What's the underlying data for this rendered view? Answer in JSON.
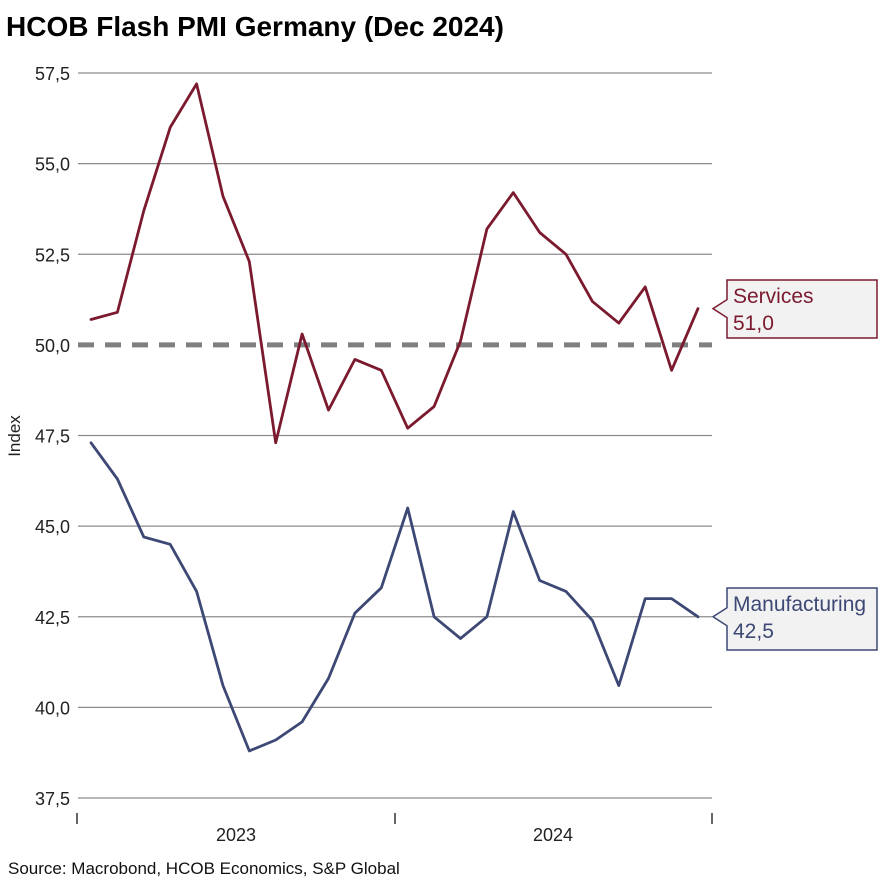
{
  "chart_data": {
    "type": "line",
    "title": "HCOB Flash PMI Germany (Dec 2024)",
    "ylabel": "Index",
    "xlabel": "",
    "ylim": [
      37.5,
      57.5
    ],
    "yticks": [
      "37,5",
      "40,0",
      "42,5",
      "45,0",
      "47,5",
      "50,0",
      "52,5",
      "55,0",
      "57,5"
    ],
    "ytick_values": [
      37.5,
      40.0,
      42.5,
      45.0,
      47.5,
      50.0,
      52.5,
      55.0,
      57.5
    ],
    "x": [
      "2023-01",
      "2023-02",
      "2023-03",
      "2023-04",
      "2023-05",
      "2023-06",
      "2023-07",
      "2023-08",
      "2023-09",
      "2023-10",
      "2023-11",
      "2023-12",
      "2024-01",
      "2024-02",
      "2024-03",
      "2024-04",
      "2024-05",
      "2024-06",
      "2024-07",
      "2024-08",
      "2024-09",
      "2024-10",
      "2024-11",
      "2024-12"
    ],
    "xtick_labels": [
      "2023",
      "2024"
    ],
    "reference_line": 50.0,
    "grid": true,
    "series": [
      {
        "name": "Services",
        "color": "#7b1a2e",
        "values": [
          50.7,
          50.9,
          53.7,
          56.0,
          57.2,
          54.1,
          52.3,
          47.3,
          50.3,
          48.2,
          49.6,
          49.3,
          47.7,
          48.3,
          50.1,
          53.2,
          54.2,
          53.1,
          52.5,
          51.2,
          50.6,
          51.6,
          49.3,
          51.0
        ],
        "callout_name": "Services",
        "callout_value": "51,0"
      },
      {
        "name": "Manufacturing",
        "color": "#3d4875",
        "values": [
          47.3,
          46.3,
          44.7,
          44.5,
          43.2,
          40.6,
          38.8,
          39.1,
          39.6,
          40.8,
          42.6,
          43.3,
          45.5,
          42.5,
          41.9,
          42.5,
          45.4,
          43.5,
          43.2,
          42.4,
          40.6,
          43.0,
          43.0,
          42.5
        ],
        "callout_name": "Manufacturing",
        "callout_value": "42,5"
      }
    ],
    "legend": "callout boxes at right end of lines"
  },
  "footer": {
    "source": "Source: Macrobond, HCOB Economics, S&P Global"
  }
}
